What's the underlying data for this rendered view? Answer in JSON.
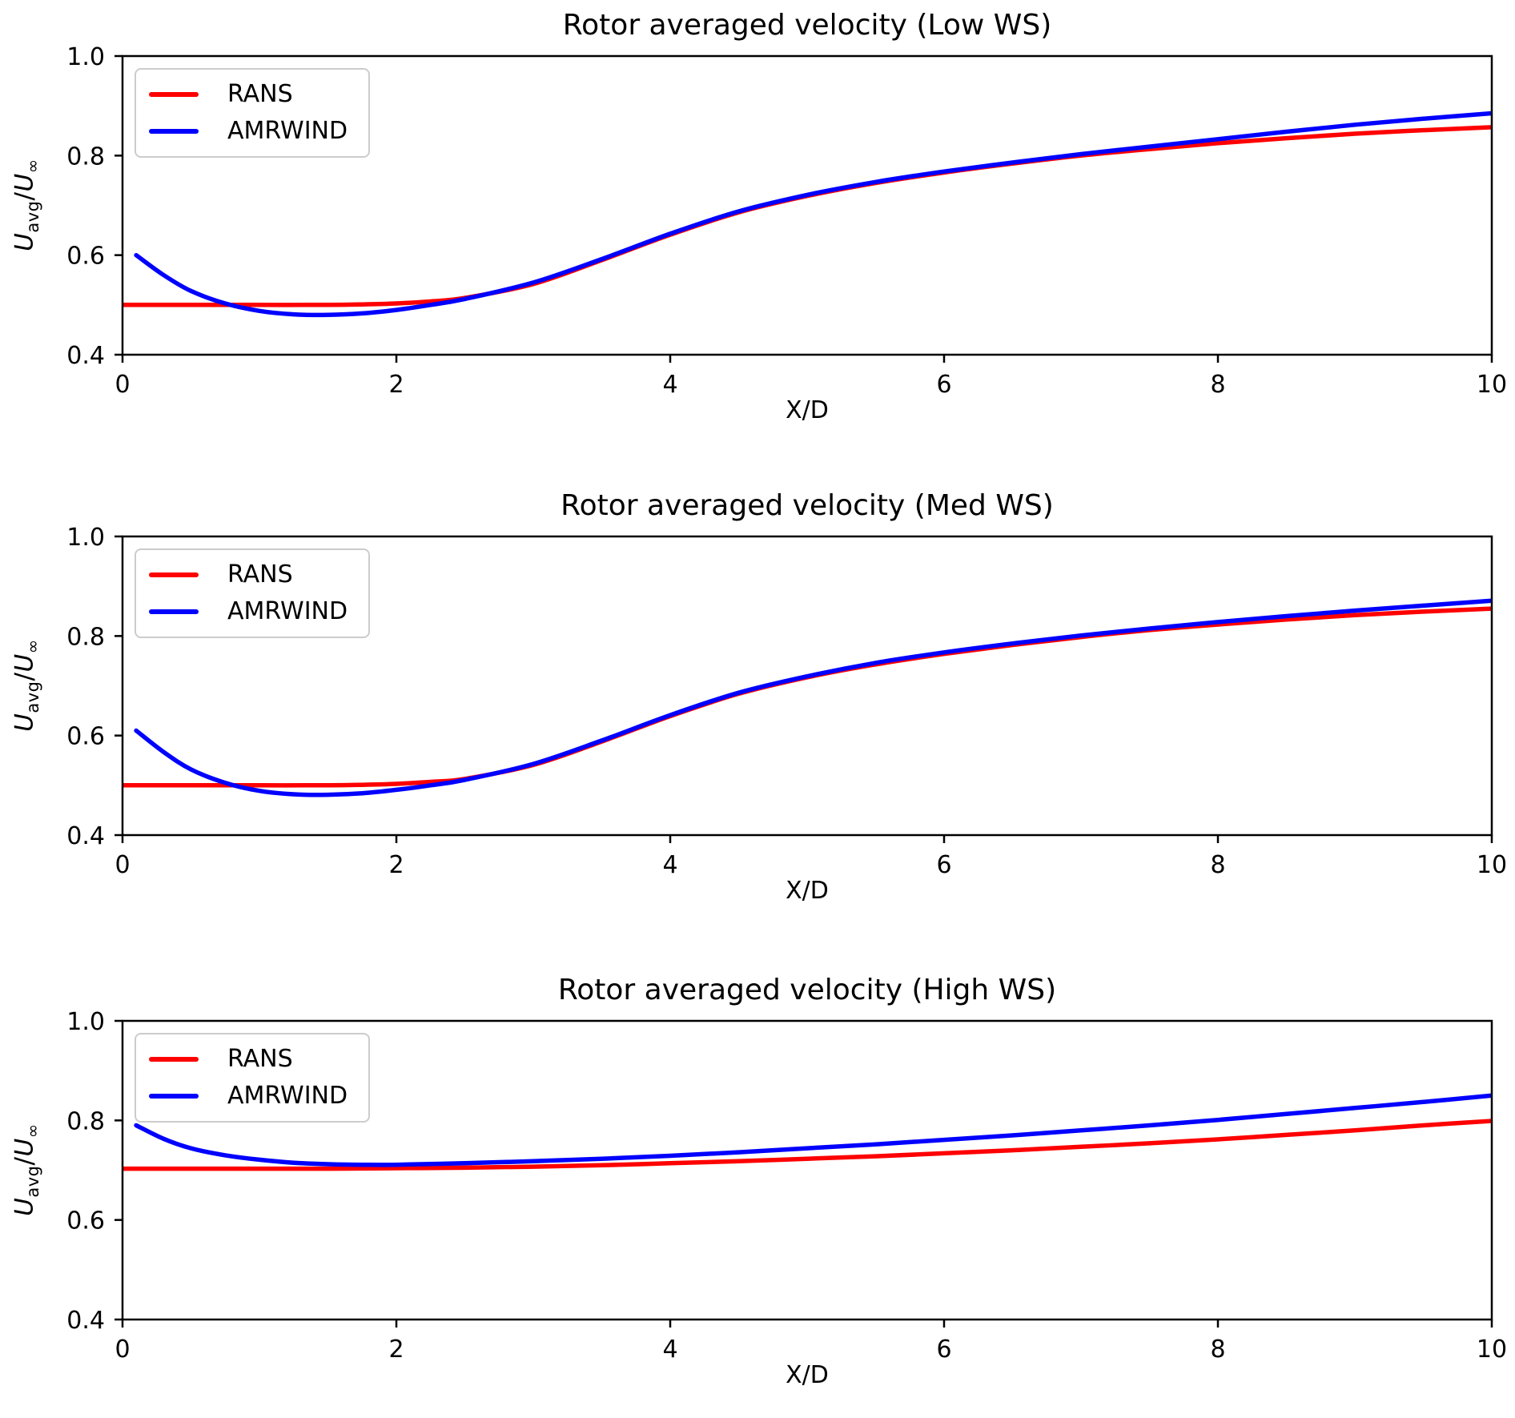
{
  "figure": {
    "background": "#ffffff",
    "spine_color": "#000000",
    "accent_red": "#ff0000",
    "accent_blue": "#0000ff"
  },
  "axes": {
    "ylabel": {
      "u1": "U",
      "sub1": "avg",
      "sep": "/",
      "u2": "U",
      "sub2": "∞"
    }
  },
  "chart_data": [
    {
      "type": "line",
      "title": "Rotor averaged velocity (Low WS)",
      "xlabel": "X/D",
      "ylabel": "U_avg/U_inf",
      "xlim": [
        0,
        10
      ],
      "ylim": [
        0.4,
        1.0
      ],
      "grid": false,
      "legend_position": "upper left",
      "xticks": {
        "values": [
          0,
          2,
          4,
          6,
          8,
          10
        ],
        "labels": [
          "0",
          "2",
          "4",
          "6",
          "8",
          "10"
        ]
      },
      "yticks": {
        "values": [
          0.4,
          0.6,
          0.8,
          1.0
        ],
        "labels": [
          "0.4",
          "0.6",
          "0.8",
          "1.0"
        ]
      },
      "series": [
        {
          "name": "RANS",
          "color": "#ff0000",
          "x": [
            0.0,
            0.5,
            1.0,
            1.5,
            1.75,
            2.0,
            2.25,
            2.5,
            3.0,
            3.5,
            4.0,
            4.5,
            5.0,
            5.5,
            6.0,
            6.5,
            7.0,
            7.5,
            8.0,
            8.5,
            9.0,
            9.5,
            10.0
          ],
          "y": [
            0.5,
            0.5,
            0.5,
            0.5,
            0.501,
            0.503,
            0.507,
            0.514,
            0.542,
            0.59,
            0.641,
            0.686,
            0.719,
            0.745,
            0.766,
            0.784,
            0.8,
            0.813,
            0.825,
            0.835,
            0.844,
            0.851,
            0.857
          ]
        },
        {
          "name": "AMRWIND",
          "color": "#0000ff",
          "x": [
            0.1,
            0.3,
            0.5,
            0.75,
            1.0,
            1.25,
            1.5,
            1.75,
            2.0,
            2.25,
            2.5,
            3.0,
            3.5,
            4.0,
            4.5,
            5.0,
            5.5,
            6.0,
            6.5,
            7.0,
            7.5,
            8.0,
            8.5,
            9.0,
            9.5,
            10.0
          ],
          "y": [
            0.6,
            0.56,
            0.528,
            0.503,
            0.488,
            0.481,
            0.48,
            0.483,
            0.49,
            0.5,
            0.512,
            0.545,
            0.592,
            0.643,
            0.688,
            0.721,
            0.747,
            0.768,
            0.786,
            0.803,
            0.818,
            0.833,
            0.848,
            0.862,
            0.874,
            0.885
          ]
        }
      ]
    },
    {
      "type": "line",
      "title": "Rotor averaged velocity (Med WS)",
      "xlabel": "X/D",
      "ylabel": "U_avg/U_inf",
      "xlim": [
        0,
        10
      ],
      "ylim": [
        0.4,
        1.0
      ],
      "grid": false,
      "legend_position": "upper left",
      "xticks": {
        "values": [
          0,
          2,
          4,
          6,
          8,
          10
        ],
        "labels": [
          "0",
          "2",
          "4",
          "6",
          "8",
          "10"
        ]
      },
      "yticks": {
        "values": [
          0.4,
          0.6,
          0.8,
          1.0
        ],
        "labels": [
          "0.4",
          "0.6",
          "0.8",
          "1.0"
        ]
      },
      "series": [
        {
          "name": "RANS",
          "color": "#ff0000",
          "x": [
            0.0,
            0.5,
            1.0,
            1.5,
            1.75,
            2.0,
            2.25,
            2.5,
            3.0,
            3.5,
            4.0,
            4.5,
            5.0,
            5.5,
            6.0,
            6.5,
            7.0,
            7.5,
            8.0,
            8.5,
            9.0,
            9.5,
            10.0
          ],
          "y": [
            0.5,
            0.5,
            0.5,
            0.5,
            0.501,
            0.503,
            0.507,
            0.513,
            0.541,
            0.588,
            0.639,
            0.684,
            0.717,
            0.743,
            0.764,
            0.782,
            0.798,
            0.812,
            0.823,
            0.833,
            0.842,
            0.849,
            0.855
          ]
        },
        {
          "name": "AMRWIND",
          "color": "#0000ff",
          "x": [
            0.1,
            0.3,
            0.5,
            0.75,
            1.0,
            1.25,
            1.5,
            1.75,
            2.0,
            2.25,
            2.5,
            3.0,
            3.5,
            4.0,
            4.5,
            5.0,
            5.5,
            6.0,
            6.5,
            7.0,
            7.5,
            8.0,
            8.5,
            9.0,
            9.5,
            10.0
          ],
          "y": [
            0.61,
            0.567,
            0.532,
            0.505,
            0.489,
            0.482,
            0.481,
            0.484,
            0.491,
            0.5,
            0.511,
            0.543,
            0.59,
            0.641,
            0.686,
            0.719,
            0.746,
            0.767,
            0.785,
            0.801,
            0.815,
            0.828,
            0.84,
            0.851,
            0.861,
            0.871
          ]
        }
      ]
    },
    {
      "type": "line",
      "title": "Rotor averaged velocity (High WS)",
      "xlabel": "X/D",
      "ylabel": "U_avg/U_inf",
      "xlim": [
        0,
        10
      ],
      "ylim": [
        0.4,
        1.0
      ],
      "grid": false,
      "legend_position": "upper left",
      "xticks": {
        "values": [
          0,
          2,
          4,
          6,
          8,
          10
        ],
        "labels": [
          "0",
          "2",
          "4",
          "6",
          "8",
          "10"
        ]
      },
      "yticks": {
        "values": [
          0.4,
          0.6,
          0.8,
          1.0
        ],
        "labels": [
          "0.4",
          "0.6",
          "0.8",
          "1.0"
        ]
      },
      "series": [
        {
          "name": "RANS",
          "color": "#ff0000",
          "x": [
            0.0,
            0.5,
            1.0,
            1.5,
            2.0,
            2.5,
            3.0,
            3.5,
            4.0,
            4.5,
            5.0,
            5.5,
            6.0,
            6.5,
            7.0,
            7.5,
            8.0,
            8.5,
            9.0,
            9.5,
            10.0
          ],
          "y": [
            0.703,
            0.703,
            0.703,
            0.703,
            0.704,
            0.705,
            0.707,
            0.71,
            0.714,
            0.718,
            0.723,
            0.728,
            0.734,
            0.74,
            0.747,
            0.754,
            0.762,
            0.771,
            0.78,
            0.79,
            0.799
          ]
        },
        {
          "name": "AMRWIND",
          "color": "#0000ff",
          "x": [
            0.1,
            0.3,
            0.5,
            0.75,
            1.0,
            1.25,
            1.5,
            1.75,
            2.0,
            2.5,
            3.0,
            3.5,
            4.0,
            4.5,
            5.0,
            5.5,
            6.0,
            6.5,
            7.0,
            7.5,
            8.0,
            8.5,
            9.0,
            9.5,
            10.0
          ],
          "y": [
            0.79,
            0.763,
            0.744,
            0.73,
            0.721,
            0.715,
            0.712,
            0.711,
            0.711,
            0.714,
            0.718,
            0.723,
            0.729,
            0.736,
            0.744,
            0.752,
            0.761,
            0.77,
            0.78,
            0.79,
            0.801,
            0.813,
            0.825,
            0.837,
            0.85
          ]
        }
      ]
    }
  ]
}
